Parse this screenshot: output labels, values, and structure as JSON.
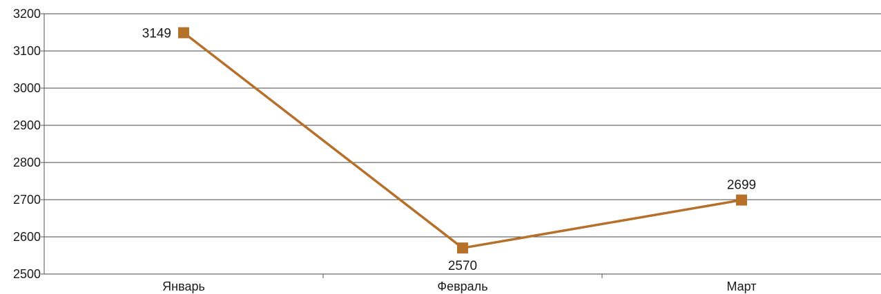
{
  "colors": {
    "series": "#b5702a",
    "grid": "#444444",
    "axis": "#555555",
    "background": "#ffffff"
  },
  "chart_data": {
    "type": "line",
    "title": "",
    "xlabel": "",
    "ylabel": "",
    "categories": [
      "Январь",
      "Февраль",
      "Март"
    ],
    "series": [
      {
        "values": [
          3149,
          2570,
          2699
        ],
        "marker": "square",
        "data_labels": [
          "3149",
          "2570",
          "2699"
        ]
      }
    ],
    "ylim": [
      2500,
      3200
    ],
    "yticks": [
      2500,
      2600,
      2700,
      2800,
      2900,
      3000,
      3100,
      3200
    ],
    "ytick_labels": [
      "2500",
      "2600",
      "2700",
      "2800",
      "2900",
      "3000",
      "3100",
      "3200"
    ],
    "grid": true,
    "legend": "none"
  }
}
